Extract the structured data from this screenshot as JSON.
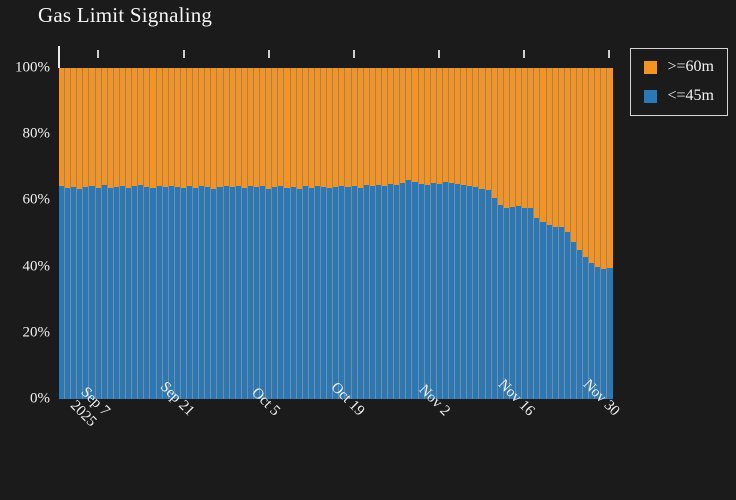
{
  "title": "Gas Limit Signaling",
  "chart_data": {
    "type": "bar",
    "stacked": true,
    "stacked_to": 100,
    "title": "Gas Limit Signaling",
    "unit": "percent",
    "ylim": [
      0,
      100
    ],
    "grid": false,
    "legend_position": "top-right",
    "colors": {
      "background": "#1b1b1b",
      "text": "#f2f2f2",
      "orange": "#f6921e",
      "blue": "#2979b9"
    },
    "yticks": [
      "100%",
      "80%",
      "60%",
      "40%",
      "20%",
      "0%"
    ],
    "xticks": [
      "Sep 7",
      "Sep 21",
      "Oct 5",
      "Oct 19",
      "Nov 2",
      "Nov 16",
      "Nov 30"
    ],
    "year_label": "2025",
    "categories": [
      "Sep 1",
      "Sep 2",
      "Sep 3",
      "Sep 4",
      "Sep 5",
      "Sep 6",
      "Sep 7",
      "Sep 8",
      "Sep 9",
      "Sep 10",
      "Sep 11",
      "Sep 12",
      "Sep 13",
      "Sep 14",
      "Sep 15",
      "Sep 16",
      "Sep 17",
      "Sep 18",
      "Sep 19",
      "Sep 20",
      "Sep 21",
      "Sep 22",
      "Sep 23",
      "Sep 24",
      "Sep 25",
      "Sep 26",
      "Sep 27",
      "Sep 28",
      "Sep 29",
      "Sep 30",
      "Oct 1",
      "Oct 2",
      "Oct 3",
      "Oct 4",
      "Oct 5",
      "Oct 6",
      "Oct 7",
      "Oct 8",
      "Oct 9",
      "Oct 10",
      "Oct 11",
      "Oct 12",
      "Oct 13",
      "Oct 14",
      "Oct 15",
      "Oct 16",
      "Oct 17",
      "Oct 18",
      "Oct 19",
      "Oct 20",
      "Oct 21",
      "Oct 22",
      "Oct 23",
      "Oct 24",
      "Oct 25",
      "Oct 26",
      "Oct 27",
      "Oct 28",
      "Oct 29",
      "Oct 30",
      "Oct 31",
      "Nov 1",
      "Nov 2",
      "Nov 3",
      "Nov 4",
      "Nov 5",
      "Nov 6",
      "Nov 7",
      "Nov 8",
      "Nov 9",
      "Nov 10",
      "Nov 11",
      "Nov 12",
      "Nov 13",
      "Nov 14",
      "Nov 15",
      "Nov 16",
      "Nov 17",
      "Nov 18",
      "Nov 19",
      "Nov 20",
      "Nov 21",
      "Nov 22",
      "Nov 23",
      "Nov 24",
      "Nov 25",
      "Nov 26",
      "Nov 27",
      "Nov 28",
      "Nov 29",
      "Nov 30"
    ],
    "series": [
      {
        "name": ">=60m",
        "color": "#f6921e",
        "values": [
          35.6,
          36.3,
          35.9,
          36.5,
          36.1,
          35.7,
          36.2,
          35.4,
          36.4,
          36.0,
          35.6,
          36.2,
          35.8,
          35.4,
          36.0,
          36.4,
          35.7,
          36.1,
          35.5,
          35.9,
          36.3,
          35.8,
          36.2,
          35.6,
          36.0,
          36.5,
          35.9,
          35.5,
          36.1,
          35.8,
          36.3,
          35.7,
          36.1,
          35.5,
          36.6,
          36.0,
          35.6,
          36.2,
          35.9,
          36.5,
          35.8,
          36.2,
          35.6,
          36.0,
          36.4,
          35.9,
          35.5,
          36.1,
          35.7,
          36.3,
          35.4,
          35.8,
          35.2,
          35.6,
          35.0,
          35.4,
          34.7,
          33.7,
          34.4,
          34.9,
          35.2,
          34.8,
          35.1,
          34.4,
          34.7,
          35.1,
          35.4,
          35.8,
          36.1,
          36.5,
          36.8,
          39.3,
          41.4,
          42.3,
          42.0,
          41.8,
          42.2,
          42.4,
          45.3,
          46.5,
          47.4,
          47.9,
          48.0,
          49.5,
          52.6,
          55.0,
          57.1,
          58.9,
          60.1,
          60.8,
          60.4
        ]
      },
      {
        "name": "<=45m",
        "color": "#2979b9",
        "values": [
          64.4,
          63.7,
          64.1,
          63.5,
          63.9,
          64.3,
          63.8,
          64.6,
          63.6,
          64.0,
          64.4,
          63.8,
          64.2,
          64.6,
          64.0,
          63.6,
          64.3,
          63.9,
          64.5,
          64.1,
          63.7,
          64.2,
          63.8,
          64.4,
          64.0,
          63.5,
          64.1,
          64.5,
          63.9,
          64.2,
          63.7,
          64.3,
          63.9,
          64.5,
          63.4,
          64.0,
          64.4,
          63.8,
          64.1,
          63.5,
          64.2,
          63.8,
          64.4,
          64.0,
          63.6,
          64.1,
          64.5,
          63.9,
          64.3,
          63.7,
          64.6,
          64.2,
          64.8,
          64.4,
          65.0,
          64.6,
          65.3,
          66.3,
          65.6,
          65.1,
          64.8,
          65.2,
          64.9,
          65.6,
          65.3,
          64.9,
          64.6,
          64.2,
          63.9,
          63.5,
          63.2,
          60.7,
          58.6,
          57.7,
          58.0,
          58.2,
          57.8,
          57.6,
          54.7,
          53.5,
          52.6,
          52.1,
          52.0,
          50.5,
          47.4,
          45.0,
          42.9,
          41.1,
          39.9,
          39.2,
          39.6
        ]
      }
    ]
  }
}
